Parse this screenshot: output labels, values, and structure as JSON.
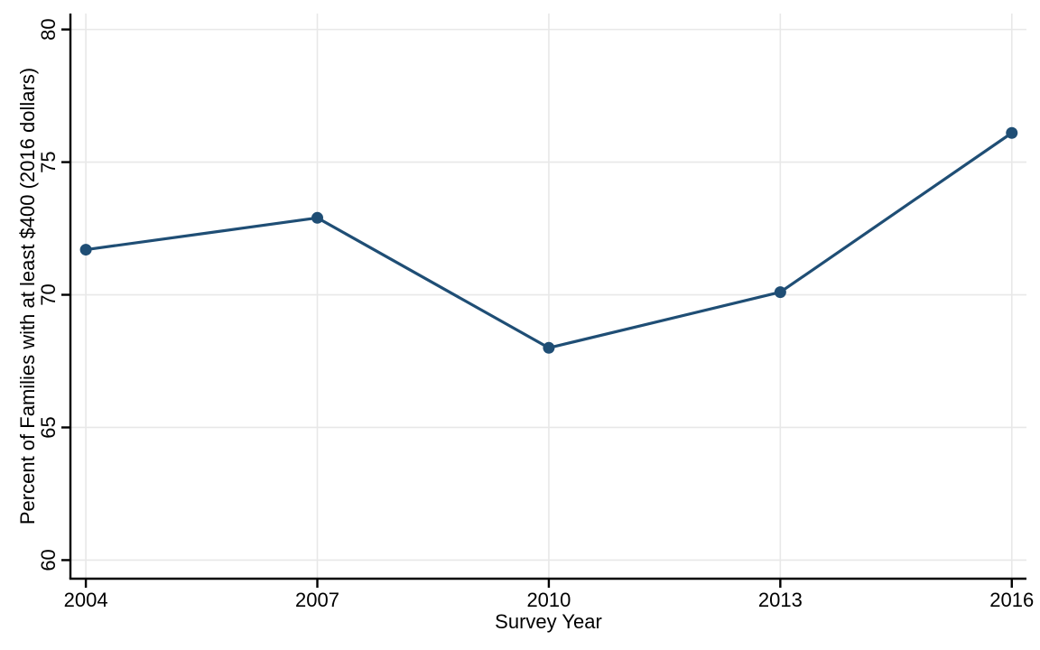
{
  "chart_data": {
    "type": "line",
    "title": "",
    "xlabel": "Survey Year",
    "ylabel": "Percent of Families with at least $400 (2016 dollars)",
    "x": [
      2004,
      2007,
      2010,
      2013,
      2016
    ],
    "series": [
      {
        "name": "Percent of families with at least $400",
        "values": [
          71.7,
          72.9,
          68.0,
          70.1,
          76.1
        ]
      }
    ],
    "xticks": [
      2004,
      2007,
      2010,
      2013,
      2016
    ],
    "yticks": [
      60,
      65,
      70,
      75,
      80
    ],
    "xlim": [
      2003.8,
      2016.19
    ],
    "ylim": [
      59.3,
      80.6
    ],
    "grid": true,
    "legend": false,
    "marker": "filled-circle",
    "colors": {
      "line": "#1f4e75",
      "marker": "#1f4e75",
      "grid": "#e8e8e8",
      "axis": "#000000",
      "text": "#000000",
      "background": "#ffffff"
    }
  }
}
